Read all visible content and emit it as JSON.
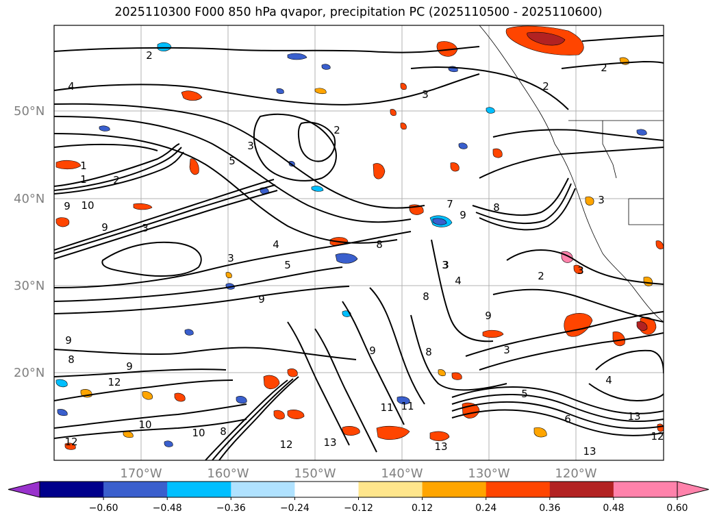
{
  "title": "2025110300 F000 850 hPa qvapor, precipitation PC (2025110500 - 2025110600)",
  "lat_labels": [
    "50°N",
    "40°N",
    "30°N",
    "20°N"
  ],
  "lon_labels": [
    "170°W",
    "160°W",
    "150°W",
    "140°W",
    "130°W",
    "120°W"
  ],
  "colorbar": {
    "ticks": [
      "−0.60",
      "−0.48",
      "−0.36",
      "−0.24",
      "−0.12",
      "0.12",
      "0.24",
      "0.36",
      "0.48",
      "0.60"
    ],
    "colors": [
      "#9932cc",
      "#00008b",
      "#3a5fcd",
      "#00bfff",
      "#b0e2ff",
      "#ffffff",
      "#ffe68c",
      "#ffa500",
      "#ff4500",
      "#b22222",
      "#ff82ab",
      "#ff82ab"
    ]
  },
  "contour_labels": [
    "2",
    "4",
    "3",
    "5",
    "2",
    "3",
    "1",
    "1",
    "2",
    "9",
    "10",
    "9",
    "3",
    "4",
    "3",
    "5",
    "8",
    "7",
    "9",
    "9",
    "8",
    "3",
    "4",
    "9",
    "8",
    "2",
    "3",
    "2",
    "2",
    "3",
    "9",
    "8",
    "12",
    "11",
    "10",
    "12",
    "13",
    "11",
    "10",
    "8",
    "9",
    "12",
    "13",
    "13",
    "5",
    "4",
    "3",
    "6",
    "13",
    "12",
    "9",
    "3",
    "8"
  ],
  "precip_colors": {
    "positive_light": "#ffe68c",
    "positive_mid": "#ffa500",
    "positive_strong": "#ff4500",
    "positive_max": "#b22222",
    "positive_extreme": "#ff82ab",
    "negative_light": "#b0e2ff",
    "negative_mid": "#00bfff",
    "negative_strong": "#3a5fcd"
  }
}
